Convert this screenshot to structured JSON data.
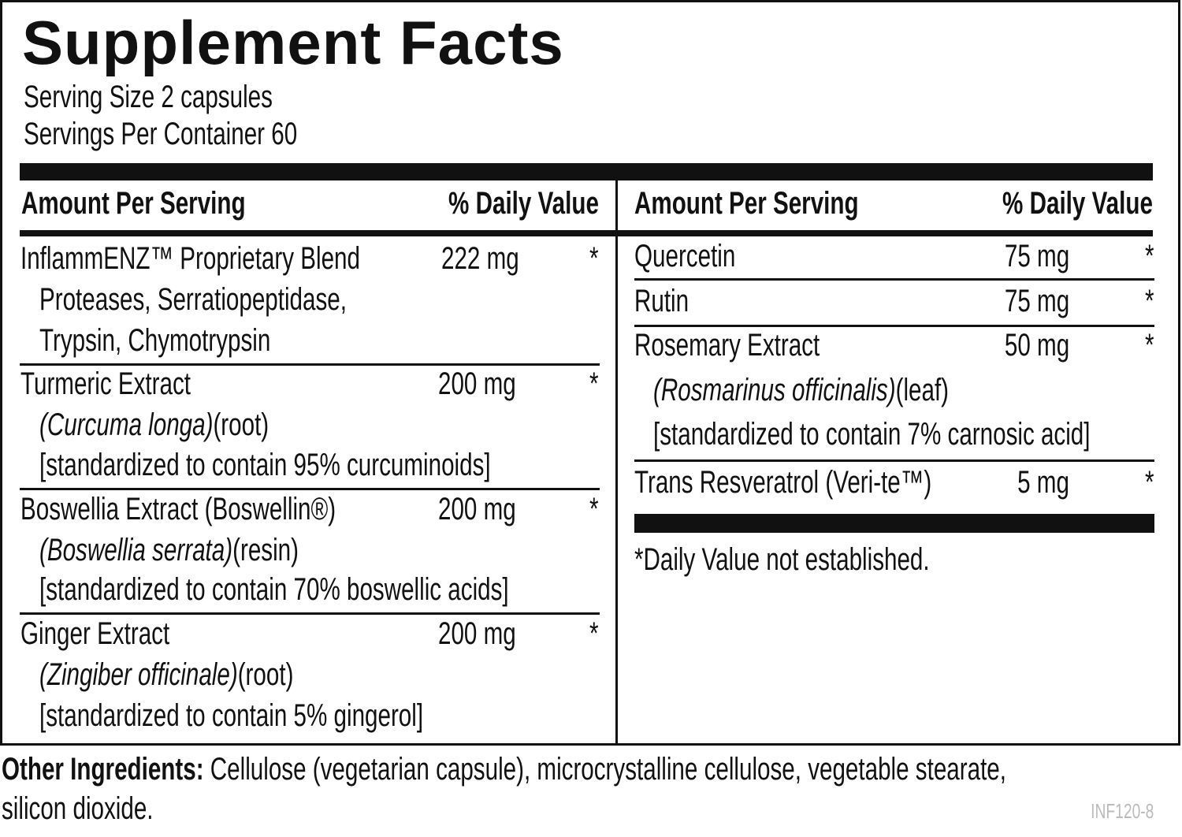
{
  "title": "Supplement Facts",
  "serving_size": "Serving Size 2 capsules",
  "servings_per_container": "Servings Per Container 60",
  "left_header": {
    "amount": "Amount Per Serving",
    "dv": "% Daily Value"
  },
  "right_header": {
    "amount": "Amount Per Serving",
    "dv": "% Daily Value"
  },
  "left_rows": [
    {
      "name": "InflammENZ™ Proprietary Blend",
      "amount": "222 mg",
      "dv": "*",
      "details": [
        "Proteases, Serratiopeptidase,",
        "Trypsin, Chymotrypsin"
      ]
    },
    {
      "name": "Turmeric Extract",
      "amount": "200 mg",
      "dv": "*",
      "source": {
        "italic": "(Curcuma longa)",
        "part": "(root)"
      },
      "standard": "[standardized to contain 95% curcuminoids]"
    },
    {
      "name": "Boswellia Extract (Boswellin®)",
      "amount": "200 mg",
      "dv": "*",
      "source": {
        "italic": "(Boswellia serrata)",
        "part": "(resin)"
      },
      "standard": "[standardized to contain 70% boswellic acids]"
    },
    {
      "name": "Ginger Extract",
      "amount": "200 mg",
      "dv": "*",
      "source": {
        "italic": "(Zingiber officinale)",
        "part": "(root)"
      },
      "standard": "[standardized to contain 5% gingerol]"
    }
  ],
  "right_rows": [
    {
      "name": "Quercetin",
      "amount": "75 mg",
      "dv": "*"
    },
    {
      "name": "Rutin",
      "amount": "75 mg",
      "dv": "*"
    },
    {
      "name": "Rosemary Extract",
      "amount": "50 mg",
      "dv": "*",
      "source": {
        "italic": "(Rosmarinus officinalis)",
        "part": "(leaf)"
      },
      "standard": "[standardized to contain 7% carnosic acid]"
    },
    {
      "name": "Trans Resveratrol (Veri-te™)",
      "amount": "5 mg",
      "dv": "*"
    }
  ],
  "footnote": "*Daily Value not established.",
  "other_ingredients": {
    "label": "Other Ingredients:",
    "text": "Cellulose (vegetarian capsule), microcrystalline cellulose, vegetable stearate,",
    "text2": "silicon dioxide."
  },
  "code": "INF120-8"
}
